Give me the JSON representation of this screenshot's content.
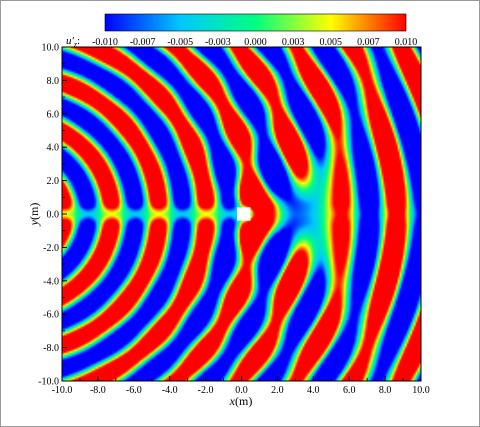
{
  "chart_data": {
    "type": "heatmap",
    "colorbar": {
      "label_main": "u",
      "label_prime": "′",
      "label_sub": "z",
      "label_colon": ":",
      "ticks": [
        "-0.010",
        "-0.007",
        "-0.005",
        "-0.003",
        "0.000",
        "0.003",
        "0.005",
        "0.007",
        "0.010"
      ],
      "range": [
        -0.01,
        0.01
      ],
      "colors": [
        "#0000ff",
        "#00c8ff",
        "#00ff80",
        "#ffff00",
        "#ff0000"
      ]
    },
    "xlabel_var": "x",
    "xlabel_unit": "(m)",
    "ylabel_var": "y",
    "ylabel_unit": "(m)",
    "xlim": [
      -10,
      10
    ],
    "ylim": [
      -10,
      10
    ],
    "x_ticks": [
      "-10.0",
      "-8.0",
      "-6.0",
      "-4.0",
      "-2.0",
      "0.0",
      "2.0",
      "4.0",
      "6.0",
      "8.0",
      "10.0"
    ],
    "y_ticks": [
      "-10.0",
      "-8.0",
      "-6.0",
      "-4.0",
      "-2.0",
      "0.0",
      "2.0",
      "4.0",
      "6.0",
      "8.0",
      "10.0"
    ],
    "obstacle": {
      "x": [
        -0.25,
        0.5
      ],
      "y": [
        -0.4,
        0.4
      ]
    }
  }
}
